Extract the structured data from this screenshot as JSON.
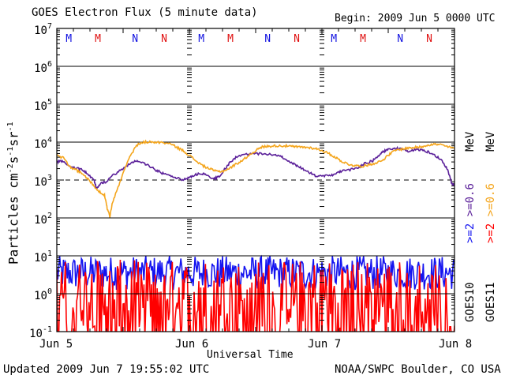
{
  "chart_data": {
    "type": "line",
    "title": "GOES Electron Flux (5 minute data)",
    "begin_label": "Begin: 2009 Jun 5 0000 UTC",
    "xlabel": "Universal Time",
    "ylabel_parts": [
      "Particles cm",
      "-2",
      "s",
      "-1",
      "sr",
      "-1"
    ],
    "x_ticks": [
      "Jun 5",
      "Jun 6",
      "Jun 7",
      "Jun 8"
    ],
    "x_range_days": [
      0,
      3
    ],
    "y_scale": "log",
    "ylim_exp": [
      -1,
      7
    ],
    "y_tick_exponents": [
      7,
      6,
      5,
      4,
      3,
      2,
      1,
      0,
      -1
    ],
    "y_tick_base": "10",
    "threshold_exp": 3,
    "local_time_markers": [
      {
        "day": 0.09,
        "label": "M",
        "color": "#1010e0"
      },
      {
        "day": 0.31,
        "label": "M",
        "color": "#e01010"
      },
      {
        "day": 0.59,
        "label": "N",
        "color": "#1010e0"
      },
      {
        "day": 0.81,
        "label": "N",
        "color": "#e01010"
      }
    ],
    "series": [
      {
        "name": "GOES10 >=0.6 MeV",
        "color": "#5a1f99",
        "x": [
          0,
          0.04,
          0.1,
          0.16,
          0.2,
          0.23,
          0.28,
          0.3,
          0.33,
          0.37,
          0.42,
          0.48,
          0.55,
          0.6,
          0.65,
          0.7,
          0.75,
          0.8,
          0.85,
          0.9,
          0.95,
          0.99,
          1.03,
          1.08,
          1.12,
          1.18,
          1.22,
          1.26,
          1.3,
          1.35,
          1.42,
          1.5,
          1.58,
          1.65,
          1.7,
          1.75,
          1.8,
          1.85,
          1.9,
          1.95,
          2.0,
          2.05,
          2.1,
          2.15,
          2.22,
          2.28,
          2.32,
          2.38,
          2.42,
          2.46,
          2.5,
          2.55,
          2.6,
          2.65,
          2.7,
          2.75,
          2.8,
          2.85,
          2.9,
          2.95,
          2.98,
          3.0
        ],
        "y": [
          3000,
          3200,
          2200,
          2000,
          1800,
          1500,
          1000,
          600,
          800,
          900,
          1300,
          1800,
          2700,
          3200,
          2900,
          2300,
          1800,
          1500,
          1300,
          1150,
          1000,
          1150,
          1300,
          1500,
          1400,
          1050,
          1200,
          1800,
          2700,
          4000,
          4700,
          5000,
          4800,
          4600,
          4000,
          3200,
          2500,
          2000,
          1600,
          1300,
          1250,
          1300,
          1450,
          1700,
          1900,
          2200,
          2700,
          3200,
          4200,
          5500,
          6500,
          7000,
          6500,
          5800,
          6200,
          6400,
          5500,
          4500,
          3500,
          1800,
          800,
          700
        ]
      },
      {
        "name": "GOES11 >=0.6 MeV",
        "color": "#f4a51c",
        "x": [
          0,
          0.05,
          0.1,
          0.15,
          0.2,
          0.24,
          0.28,
          0.32,
          0.36,
          0.38,
          0.4,
          0.42,
          0.45,
          0.5,
          0.55,
          0.6,
          0.63,
          0.67,
          0.72,
          0.78,
          0.85,
          0.9,
          0.95,
          1.0,
          1.05,
          1.1,
          1.15,
          1.2,
          1.25,
          1.3,
          1.35,
          1.4,
          1.45,
          1.5,
          1.55,
          1.6,
          1.65,
          1.7,
          1.75,
          1.8,
          1.85,
          1.9,
          1.95,
          2.0,
          2.05,
          2.1,
          2.15,
          2.2,
          2.25,
          2.3,
          2.35,
          2.4,
          2.45,
          2.5,
          2.55,
          2.6,
          2.65,
          2.7,
          2.75,
          2.8,
          2.85,
          2.9,
          2.95,
          3.0
        ],
        "y": [
          4500,
          3800,
          2200,
          1800,
          1400,
          1000,
          700,
          500,
          400,
          180,
          110,
          250,
          500,
          1500,
          4000,
          8000,
          9500,
          10000,
          10000,
          9800,
          9200,
          7500,
          6000,
          4500,
          3200,
          2400,
          2000,
          1700,
          1700,
          2000,
          2600,
          3300,
          4500,
          6000,
          7500,
          7800,
          8000,
          8000,
          7800,
          7500,
          7400,
          7200,
          6800,
          6000,
          5000,
          4000,
          3100,
          2600,
          2400,
          2300,
          2500,
          2800,
          3200,
          4500,
          6000,
          6500,
          7000,
          7200,
          7500,
          8500,
          8800,
          8500,
          7500,
          6800
        ]
      },
      {
        "name": "GOES10 >=2 MeV",
        "color": "#1414f0",
        "style": "noisy-bars",
        "median_exp": 0.55,
        "spread_exp": 0.45
      },
      {
        "name": "GOES11 >=2 MeV",
        "color": "#ff0000",
        "style": "noisy-bars",
        "median_exp": 0.0,
        "spread_exp": 0.9
      }
    ],
    "right_legend": [
      {
        "text": ">=2",
        "color": "#1414f0"
      },
      {
        "text": ">=0.6",
        "color": "#5a1f99"
      },
      {
        "text": ">=2",
        "color": "#ff0000"
      },
      {
        "text": ">=0.6",
        "color": "#f4a51c"
      }
    ],
    "legend_unit": "MeV",
    "satellite_labels": [
      "GOES10",
      "GOES11"
    ]
  },
  "footer": {
    "updated": "Updated 2009 Jun  7 19:55:02 UTC",
    "credit": "NOAA/SWPC Boulder, CO USA"
  }
}
